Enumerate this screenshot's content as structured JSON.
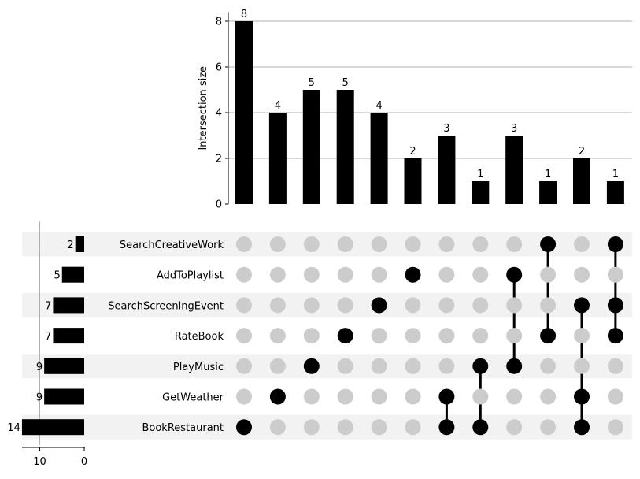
{
  "chart_data": {
    "type": "upset",
    "ylabel": "Intersection size",
    "ylim": [
      0,
      8.4
    ],
    "yticks": [
      0,
      2,
      4,
      6,
      8
    ],
    "grid": true,
    "sets": [
      "SearchCreativeWork",
      "AddToPlaylist",
      "SearchScreeningEvent",
      "RateBook",
      "PlayMusic",
      "GetWeather",
      "BookRestaurant"
    ],
    "set_sizes": [
      2,
      5,
      7,
      7,
      9,
      9,
      14
    ],
    "set_size_ticks": [
      10,
      0
    ],
    "set_size_xlim": [
      0,
      14
    ],
    "intersections": [
      {
        "members": [
          "BookRestaurant"
        ],
        "size": 8
      },
      {
        "members": [
          "GetWeather"
        ],
        "size": 4
      },
      {
        "members": [
          "PlayMusic"
        ],
        "size": 5
      },
      {
        "members": [
          "RateBook"
        ],
        "size": 5
      },
      {
        "members": [
          "SearchScreeningEvent"
        ],
        "size": 4
      },
      {
        "members": [
          "AddToPlaylist"
        ],
        "size": 2
      },
      {
        "members": [
          "GetWeather",
          "BookRestaurant"
        ],
        "size": 3
      },
      {
        "members": [
          "PlayMusic",
          "BookRestaurant"
        ],
        "size": 1
      },
      {
        "members": [
          "AddToPlaylist",
          "PlayMusic"
        ],
        "size": 3
      },
      {
        "members": [
          "SearchCreativeWork",
          "RateBook"
        ],
        "size": 1
      },
      {
        "members": [
          "SearchScreeningEvent",
          "GetWeather",
          "BookRestaurant"
        ],
        "size": 2
      },
      {
        "members": [
          "SearchCreativeWork",
          "SearchScreeningEvent",
          "RateBook"
        ],
        "size": 1
      }
    ]
  },
  "colors": {
    "bar": "#000000",
    "dot_active": "#000000",
    "dot_inactive": "#cccccc",
    "row_shade": "#f2f2f2",
    "grid": "#b0b0b0"
  }
}
